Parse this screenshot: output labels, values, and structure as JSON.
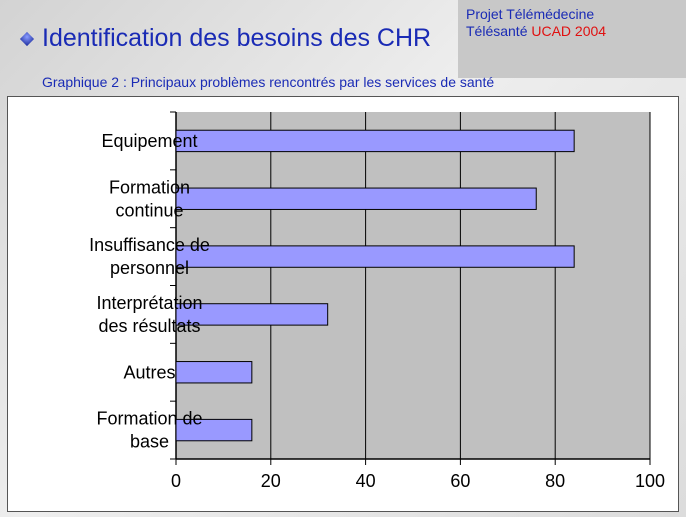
{
  "header": {
    "title": "Identification des besoins des CHR",
    "project_line1": "Projet Télémédecine",
    "project_line2_prefix": "Télésanté",
    "project_line2_accent": "UCAD 2004"
  },
  "chart_data": {
    "type": "bar",
    "orientation": "horizontal",
    "title": "Graphique  2 : Principaux problèmes rencontrés par les services de santé",
    "categories": [
      [
        "Equipement"
      ],
      [
        "Formation",
        "continue"
      ],
      [
        "Insuffisance de",
        "personnel"
      ],
      [
        "Interprétation",
        "des résultats"
      ],
      [
        "Autres"
      ],
      [
        "Formation de",
        "base"
      ]
    ],
    "values": [
      84,
      76,
      84,
      32,
      16,
      16
    ],
    "xlim": [
      0,
      100
    ],
    "xticks": [
      0,
      20,
      40,
      60,
      80,
      100
    ],
    "grid": true,
    "legend": "none",
    "colors": {
      "bar": "#9999ff",
      "plot_bg": "#c0c0c0",
      "grid": "#000000"
    }
  }
}
